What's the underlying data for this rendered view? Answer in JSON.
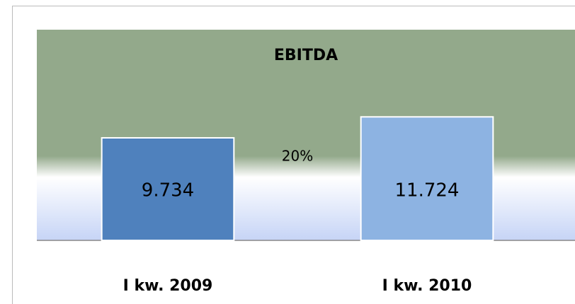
{
  "chart_data": {
    "type": "bar",
    "title": "EBITDA",
    "categories": [
      "I kw. 2009",
      "I kw. 2010"
    ],
    "values": [
      9734,
      11724
    ],
    "value_labels": [
      "9.734",
      "11.724"
    ],
    "colors": [
      "#4f81bd",
      "#8db3e2"
    ],
    "annotation": "20%",
    "ylim": [
      0,
      20000
    ]
  }
}
